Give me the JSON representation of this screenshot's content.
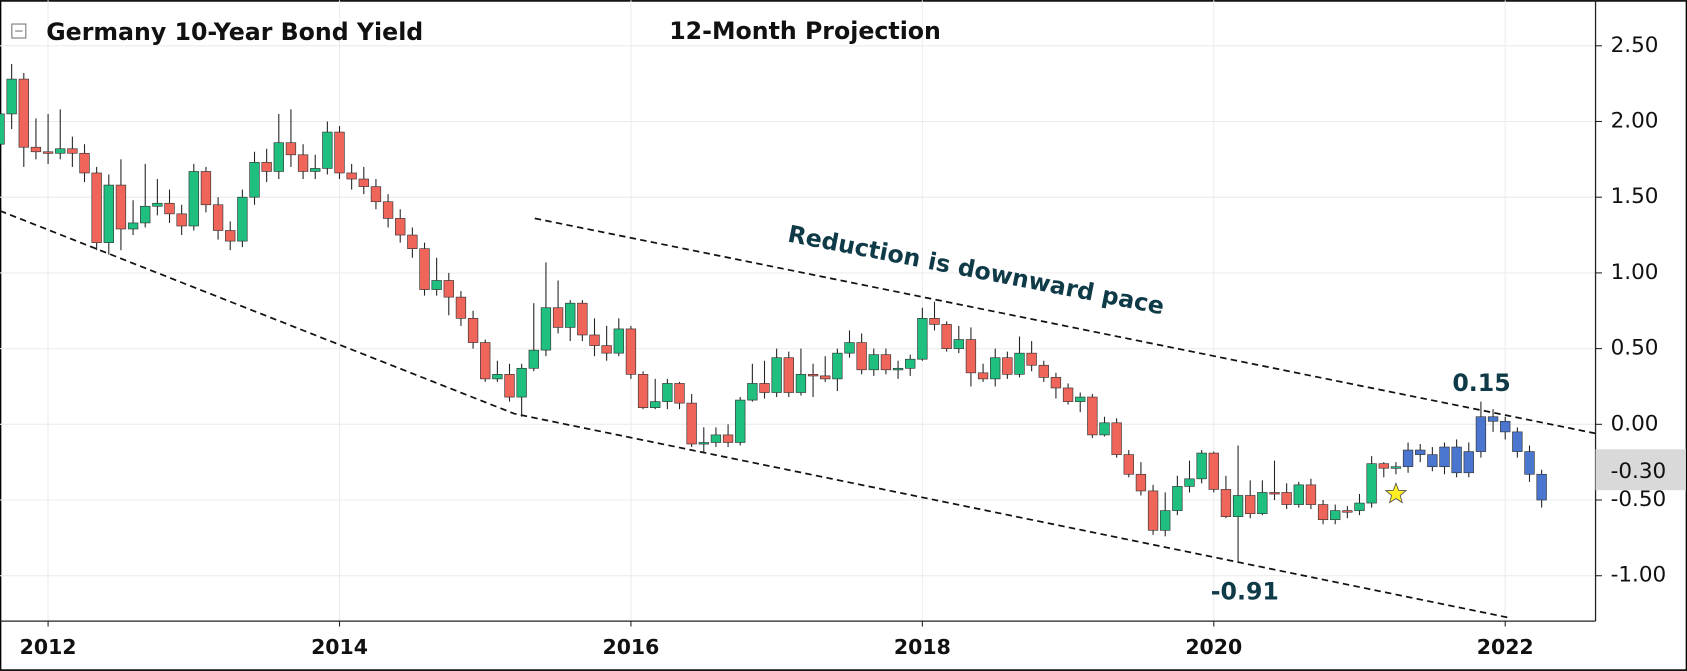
{
  "chart_data": {
    "type": "candlestick",
    "title": "Germany 10-Year Bond Yield",
    "subtitle": "12-Month Projection",
    "xlim": [
      2011.67,
      2022.62
    ],
    "xticks": [
      2012,
      2014,
      2016,
      2018,
      2020,
      2022
    ],
    "ylim": [
      -1.3,
      2.8
    ],
    "yticks": [
      {
        "value": 2.5,
        "label": "2.50"
      },
      {
        "value": 2,
        "label": "2.00"
      },
      {
        "value": 1.5,
        "label": "1.50"
      },
      {
        "value": 1,
        "label": "1.00"
      },
      {
        "value": 0.5,
        "label": "0.50"
      },
      {
        "value": 0,
        "label": "0.00"
      },
      {
        "value": -0.5,
        "label": "-0.50"
      },
      {
        "value": -1,
        "label": "-1.00"
      }
    ],
    "grid": true,
    "up_color": "#1fbf7f",
    "down_color": "#f0655a",
    "projection_color": "#4a76d0",
    "candles": {
      "x": [
        "2011-09",
        "2011-10",
        "2011-11",
        "2011-12",
        "2012-01",
        "2012-02",
        "2012-03",
        "2012-04",
        "2012-05",
        "2012-06",
        "2012-07",
        "2012-08",
        "2012-09",
        "2012-10",
        "2012-11",
        "2012-12",
        "2013-01",
        "2013-02",
        "2013-03",
        "2013-04",
        "2013-05",
        "2013-06",
        "2013-07",
        "2013-08",
        "2013-09",
        "2013-10",
        "2013-11",
        "2013-12",
        "2014-01",
        "2014-02",
        "2014-03",
        "2014-04",
        "2014-05",
        "2014-06",
        "2014-07",
        "2014-08",
        "2014-09",
        "2014-10",
        "2014-11",
        "2014-12",
        "2015-01",
        "2015-02",
        "2015-03",
        "2015-04",
        "2015-05",
        "2015-06",
        "2015-07",
        "2015-08",
        "2015-09",
        "2015-10",
        "2015-11",
        "2015-12",
        "2016-01",
        "2016-02",
        "2016-03",
        "2016-04",
        "2016-05",
        "2016-06",
        "2016-07",
        "2016-08",
        "2016-09",
        "2016-10",
        "2016-11",
        "2016-12",
        "2017-01",
        "2017-02",
        "2017-03",
        "2017-04",
        "2017-05",
        "2017-06",
        "2017-07",
        "2017-08",
        "2017-09",
        "2017-10",
        "2017-11",
        "2017-12",
        "2018-01",
        "2018-02",
        "2018-03",
        "2018-04",
        "2018-05",
        "2018-06",
        "2018-07",
        "2018-08",
        "2018-09",
        "2018-10",
        "2018-11",
        "2018-12",
        "2019-01",
        "2019-02",
        "2019-03",
        "2019-04",
        "2019-05",
        "2019-06",
        "2019-07",
        "2019-08",
        "2019-09",
        "2019-10",
        "2019-11",
        "2019-12",
        "2020-01",
        "2020-02",
        "2020-03",
        "2020-04",
        "2020-05",
        "2020-06",
        "2020-07",
        "2020-08",
        "2020-09",
        "2020-10",
        "2020-11",
        "2020-12",
        "2021-01",
        "2021-02",
        "2021-03",
        "2021-04"
      ],
      "open": [
        1.85,
        2.05,
        2.28,
        1.83,
        1.8,
        1.79,
        1.82,
        1.79,
        1.66,
        1.2,
        1.58,
        1.29,
        1.33,
        1.44,
        1.46,
        1.39,
        1.31,
        1.67,
        1.45,
        1.28,
        1.21,
        1.5,
        1.73,
        1.67,
        1.86,
        1.78,
        1.67,
        1.69,
        1.93,
        1.66,
        1.62,
        1.57,
        1.47,
        1.36,
        1.25,
        1.16,
        0.89,
        0.95,
        0.84,
        0.7,
        0.54,
        0.3,
        0.33,
        0.18,
        0.37,
        0.49,
        0.77,
        0.64,
        0.8,
        0.59,
        0.52,
        0.47,
        0.63,
        0.33,
        0.11,
        0.15,
        0.27,
        0.14,
        -0.13,
        -0.12,
        -0.07,
        -0.12,
        0.16,
        0.27,
        0.21,
        0.44,
        0.21,
        0.33,
        0.32,
        0.3,
        0.47,
        0.54,
        0.36,
        0.46,
        0.36,
        0.37,
        0.43,
        0.7,
        0.66,
        0.5,
        0.56,
        0.34,
        0.3,
        0.44,
        0.33,
        0.47,
        0.39,
        0.31,
        0.24,
        0.15,
        0.18,
        -0.07,
        0.01,
        -0.2,
        -0.33,
        -0.44,
        -0.7,
        -0.57,
        -0.41,
        -0.36,
        -0.19,
        -0.43,
        -0.61,
        -0.47,
        -0.59,
        -0.45,
        -0.45,
        -0.53,
        -0.4,
        -0.53,
        -0.63,
        -0.57,
        -0.57,
        -0.52,
        -0.26,
        -0.29
      ],
      "high": [
        2.15,
        2.38,
        2.32,
        2.02,
        2.05,
        2.08,
        1.9,
        1.85,
        1.7,
        1.65,
        1.75,
        1.48,
        1.72,
        1.62,
        1.55,
        1.45,
        1.72,
        1.7,
        1.5,
        1.34,
        1.55,
        1.8,
        1.82,
        2.05,
        2.08,
        1.85,
        1.78,
        2.0,
        1.97,
        1.72,
        1.7,
        1.62,
        1.52,
        1.42,
        1.3,
        1.2,
        1.1,
        1.0,
        0.88,
        0.75,
        0.56,
        0.42,
        0.4,
        0.4,
        0.8,
        1.07,
        0.95,
        0.82,
        0.82,
        0.7,
        0.65,
        0.7,
        0.65,
        0.35,
        0.3,
        0.3,
        0.28,
        0.2,
        -0.02,
        -0.02,
        0.0,
        0.18,
        0.4,
        0.42,
        0.5,
        0.48,
        0.5,
        0.4,
        0.45,
        0.5,
        0.62,
        0.6,
        0.5,
        0.5,
        0.42,
        0.46,
        0.77,
        0.81,
        0.68,
        0.65,
        0.64,
        0.4,
        0.5,
        0.48,
        0.58,
        0.55,
        0.42,
        0.34,
        0.27,
        0.21,
        0.2,
        0.05,
        0.04,
        -0.17,
        -0.25,
        -0.4,
        -0.45,
        -0.34,
        -0.24,
        -0.17,
        -0.18,
        -0.34,
        -0.14,
        -0.37,
        -0.37,
        -0.24,
        -0.39,
        -0.38,
        -0.36,
        -0.5,
        -0.53,
        -0.54,
        -0.46,
        -0.21,
        -0.25,
        -0.25
      ],
      "low": [
        1.68,
        1.95,
        1.7,
        1.75,
        1.72,
        1.75,
        1.7,
        1.6,
        1.15,
        1.12,
        1.15,
        1.25,
        1.3,
        1.38,
        1.33,
        1.25,
        1.28,
        1.4,
        1.22,
        1.15,
        1.17,
        1.45,
        1.6,
        1.62,
        1.7,
        1.62,
        1.62,
        1.65,
        1.62,
        1.55,
        1.52,
        1.42,
        1.3,
        1.2,
        1.1,
        0.85,
        0.85,
        0.72,
        0.65,
        0.5,
        0.28,
        0.28,
        0.15,
        0.05,
        0.35,
        0.45,
        0.6,
        0.55,
        0.55,
        0.45,
        0.42,
        0.45,
        0.3,
        0.1,
        0.1,
        0.1,
        0.1,
        -0.15,
        -0.19,
        -0.15,
        -0.15,
        -0.14,
        0.15,
        0.17,
        0.18,
        0.18,
        0.19,
        0.18,
        0.28,
        0.22,
        0.44,
        0.33,
        0.32,
        0.33,
        0.3,
        0.32,
        0.42,
        0.62,
        0.48,
        0.47,
        0.25,
        0.28,
        0.25,
        0.3,
        0.31,
        0.35,
        0.28,
        0.17,
        0.13,
        0.08,
        -0.09,
        -0.08,
        -0.22,
        -0.35,
        -0.47,
        -0.73,
        -0.74,
        -0.6,
        -0.45,
        -0.39,
        -0.45,
        -0.62,
        -0.91,
        -0.62,
        -0.6,
        -0.5,
        -0.56,
        -0.55,
        -0.56,
        -0.66,
        -0.66,
        -0.62,
        -0.6,
        -0.55,
        -0.35,
        -0.33
      ],
      "close": [
        2.05,
        2.28,
        1.83,
        1.8,
        1.79,
        1.82,
        1.79,
        1.66,
        1.2,
        1.58,
        1.29,
        1.33,
        1.44,
        1.46,
        1.39,
        1.31,
        1.67,
        1.45,
        1.28,
        1.21,
        1.5,
        1.73,
        1.67,
        1.86,
        1.78,
        1.67,
        1.69,
        1.93,
        1.66,
        1.62,
        1.57,
        1.47,
        1.36,
        1.25,
        1.16,
        0.89,
        0.95,
        0.84,
        0.7,
        0.54,
        0.3,
        0.33,
        0.18,
        0.37,
        0.49,
        0.77,
        0.64,
        0.8,
        0.59,
        0.52,
        0.47,
        0.63,
        0.33,
        0.11,
        0.15,
        0.27,
        0.14,
        -0.13,
        -0.12,
        -0.07,
        -0.12,
        0.16,
        0.27,
        0.21,
        0.44,
        0.21,
        0.33,
        0.32,
        0.3,
        0.47,
        0.54,
        0.36,
        0.46,
        0.36,
        0.37,
        0.43,
        0.7,
        0.66,
        0.5,
        0.56,
        0.34,
        0.3,
        0.44,
        0.33,
        0.47,
        0.39,
        0.31,
        0.24,
        0.15,
        0.18,
        -0.07,
        0.01,
        -0.2,
        -0.33,
        -0.44,
        -0.7,
        -0.57,
        -0.41,
        -0.36,
        -0.19,
        -0.43,
        -0.61,
        -0.47,
        -0.59,
        -0.45,
        -0.45,
        -0.53,
        -0.4,
        -0.53,
        -0.63,
        -0.57,
        -0.57,
        -0.52,
        -0.26,
        -0.29,
        -0.28
      ]
    },
    "projection": {
      "x": [
        "2021-05",
        "2021-06",
        "2021-07",
        "2021-08",
        "2021-09",
        "2021-10",
        "2021-11",
        "2021-12",
        "2022-01",
        "2022-02",
        "2022-03",
        "2022-04"
      ],
      "open": [
        -0.28,
        -0.17,
        -0.2,
        -0.28,
        -0.15,
        -0.32,
        -0.18,
        0.05,
        0.02,
        -0.05,
        -0.18,
        -0.33
      ],
      "high": [
        -0.12,
        -0.13,
        -0.15,
        -0.12,
        -0.1,
        -0.12,
        0.15,
        0.1,
        0.05,
        -0.02,
        -0.14,
        -0.3
      ],
      "low": [
        -0.32,
        -0.25,
        -0.31,
        -0.33,
        -0.35,
        -0.35,
        -0.22,
        -0.05,
        -0.1,
        -0.22,
        -0.38,
        -0.55
      ],
      "close": [
        -0.17,
        -0.2,
        -0.28,
        -0.15,
        -0.32,
        -0.18,
        0.05,
        0.02,
        -0.05,
        -0.18,
        -0.33,
        -0.5
      ]
    },
    "marker": {
      "x": "2021-04",
      "value": -0.46,
      "color": "#ffee22"
    },
    "last_value": {
      "value": -0.3,
      "label": "-0.30"
    },
    "trendlines": [
      {
        "x": [
          2011.67,
          2015.2,
          2022.04
        ],
        "y": [
          1.41,
          0.07,
          -1.28
        ]
      },
      {
        "x": [
          2015.34,
          2022.62
        ],
        "y": [
          1.36,
          -0.06
        ]
      }
    ],
    "annotations": [
      "Reduction is downward pace",
      "0.15",
      "-0.91"
    ]
  }
}
